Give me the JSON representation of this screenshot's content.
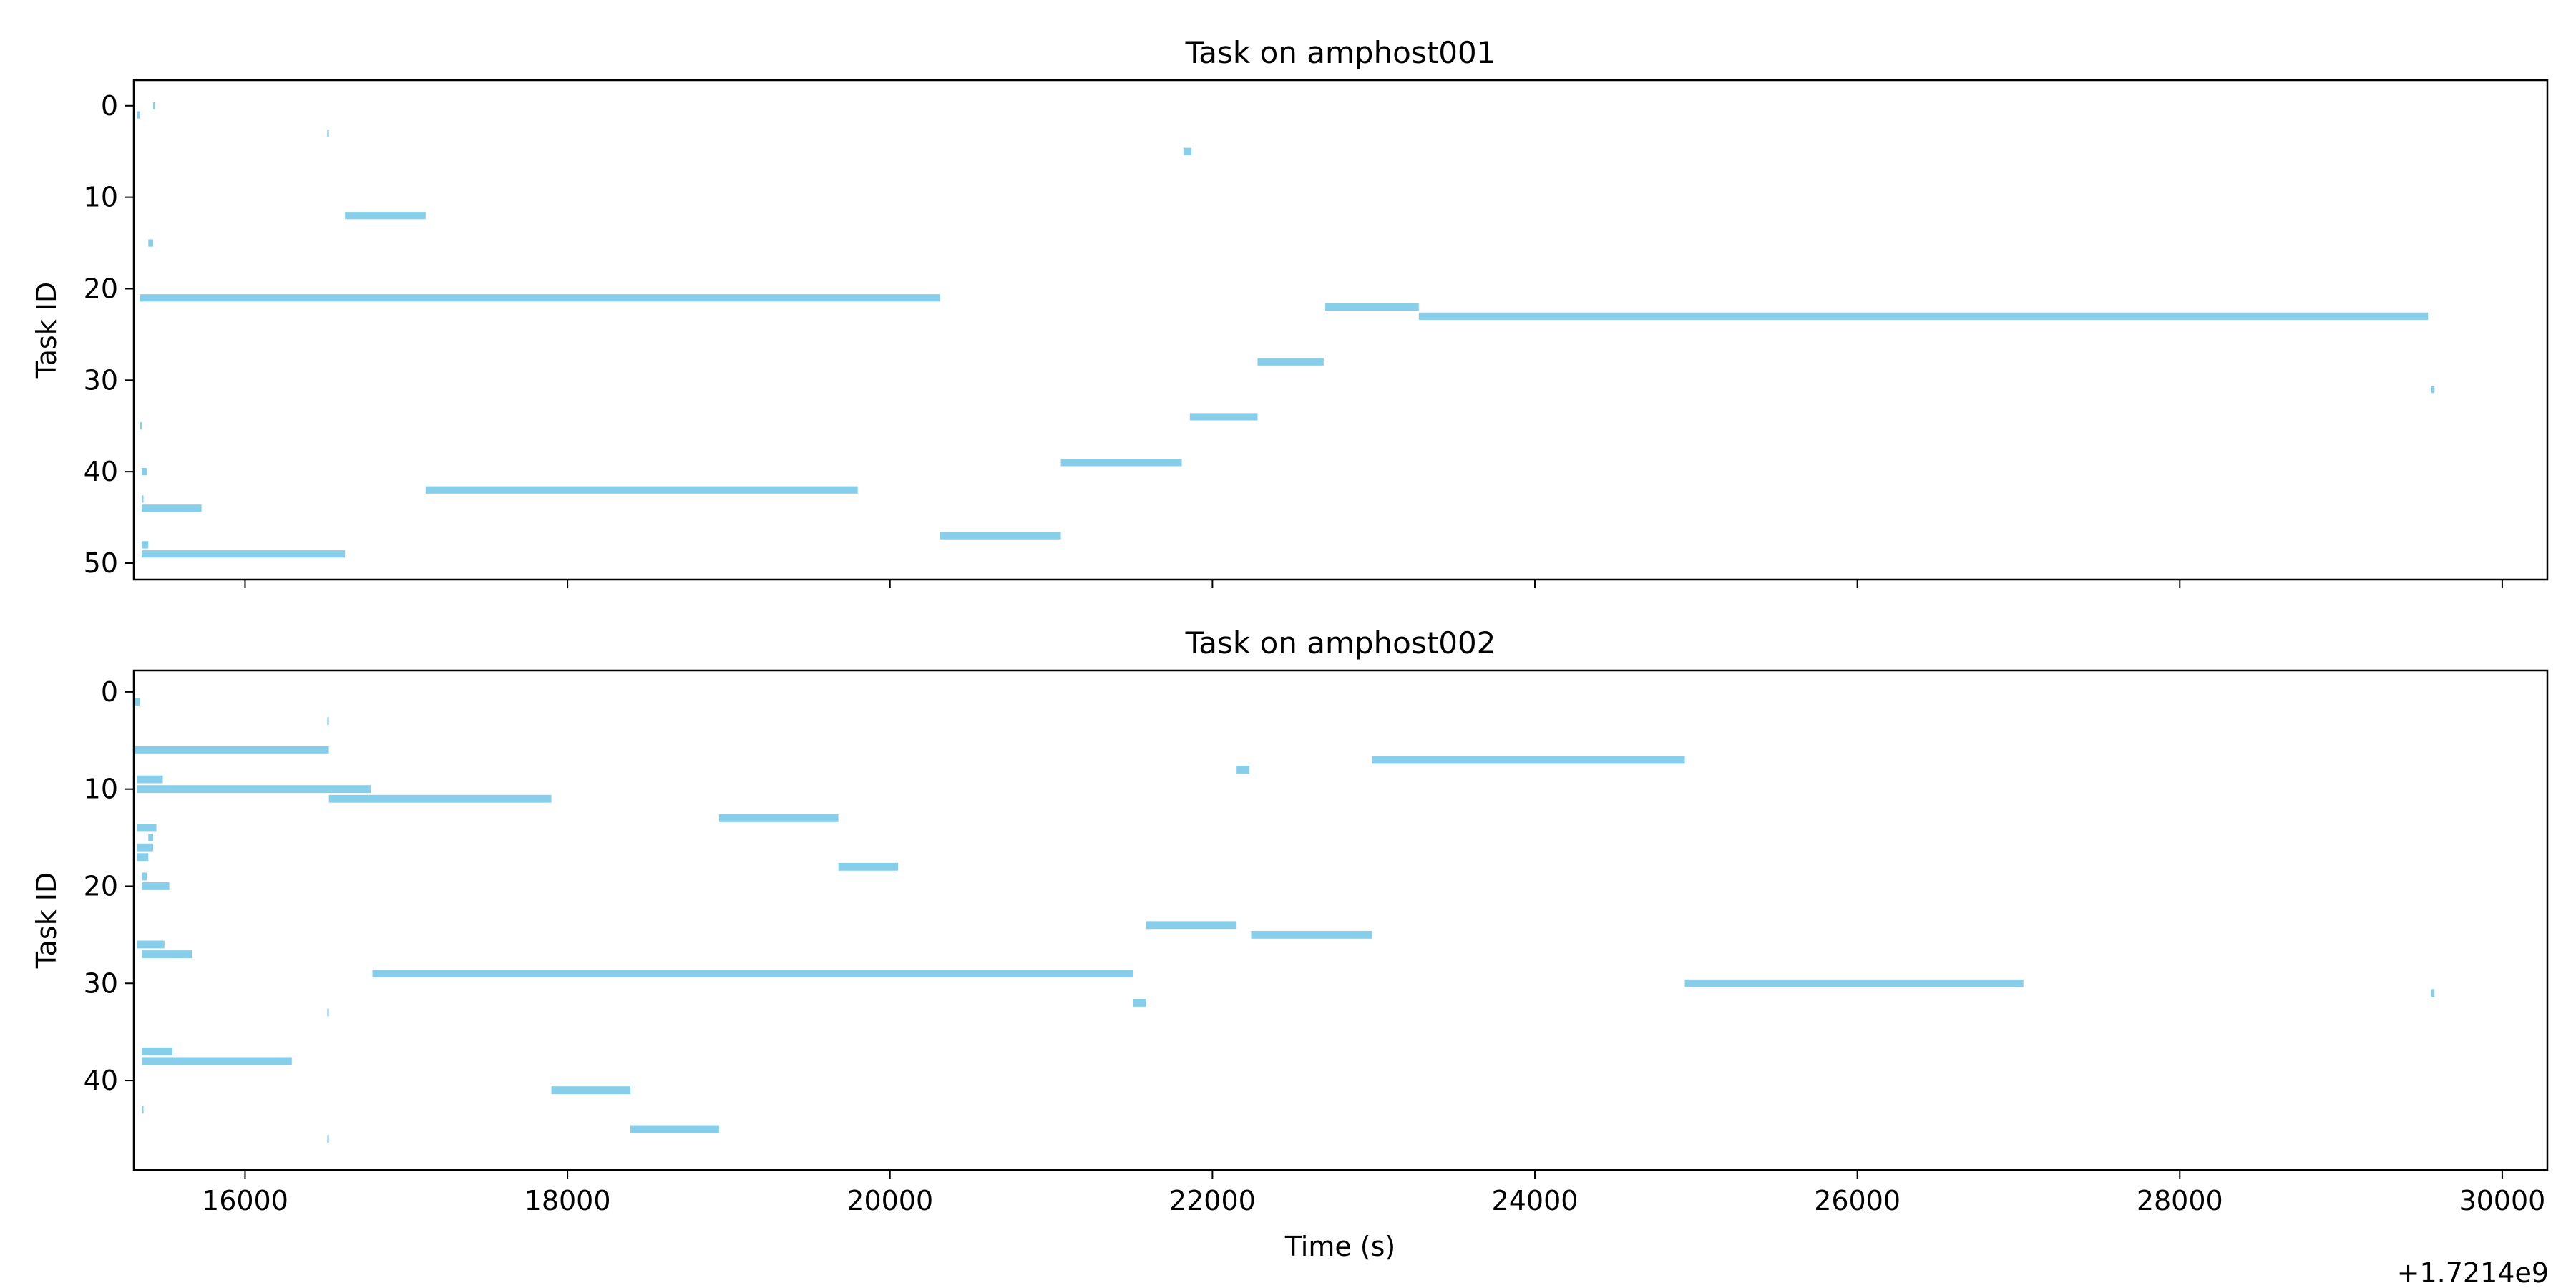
{
  "figure": {
    "xlabel": "Time (s)",
    "offset_text": "+1.7214e9",
    "bar_color": "#87ceeb"
  },
  "chart_data": [
    {
      "type": "bar",
      "subtype": "gantt-horizontal",
      "title": "Task on amphost001",
      "xlabel": "",
      "ylabel": "Task ID",
      "xlim": [
        15310,
        30280
      ],
      "ylim": [
        51.8,
        -2.8
      ],
      "y_inverted": true,
      "x_ticks": [
        16000,
        18000,
        20000,
        22000,
        24000,
        26000,
        28000,
        30000
      ],
      "x_tick_labels_shown": false,
      "y_ticks": [
        0,
        10,
        20,
        30,
        40,
        50
      ],
      "grid": false,
      "series": [
        {
          "values": [
            {
              "task": 0,
              "start": 15430,
              "end": 15440
            },
            {
              "task": 1,
              "start": 15330,
              "end": 15350
            },
            {
              "task": 3,
              "start": 16510,
              "end": 16520
            },
            {
              "task": 5,
              "start": 21820,
              "end": 21870
            },
            {
              "task": 12,
              "start": 16620,
              "end": 17120
            },
            {
              "task": 15,
              "start": 15400,
              "end": 15430
            },
            {
              "task": 21,
              "start": 15350,
              "end": 20310
            },
            {
              "task": 22,
              "start": 22700,
              "end": 23280
            },
            {
              "task": 23,
              "start": 23280,
              "end": 29540
            },
            {
              "task": 28,
              "start": 22280,
              "end": 22690
            },
            {
              "task": 31,
              "start": 29560,
              "end": 29580
            },
            {
              "task": 34,
              "start": 21860,
              "end": 22280
            },
            {
              "task": 35,
              "start": 15350,
              "end": 15360
            },
            {
              "task": 39,
              "start": 21060,
              "end": 21810
            },
            {
              "task": 40,
              "start": 15360,
              "end": 15390
            },
            {
              "task": 42,
              "start": 17120,
              "end": 19800
            },
            {
              "task": 43,
              "start": 15360,
              "end": 15370
            },
            {
              "task": 44,
              "start": 15360,
              "end": 15730
            },
            {
              "task": 47,
              "start": 20310,
              "end": 21060
            },
            {
              "task": 48,
              "start": 15360,
              "end": 15400
            },
            {
              "task": 49,
              "start": 15360,
              "end": 16620
            }
          ]
        }
      ]
    },
    {
      "type": "bar",
      "subtype": "gantt-horizontal",
      "title": "Task on amphost002",
      "xlabel": "Time (s)",
      "ylabel": "Task ID",
      "xlim": [
        15310,
        30280
      ],
      "ylim": [
        49.2,
        -2.2
      ],
      "y_inverted": true,
      "x_ticks": [
        16000,
        18000,
        20000,
        22000,
        24000,
        26000,
        28000,
        30000
      ],
      "x_tick_labels": [
        "16000",
        "18000",
        "20000",
        "22000",
        "24000",
        "26000",
        "28000",
        "30000"
      ],
      "x_offset": "+1.7214e9",
      "y_ticks": [
        0,
        10,
        20,
        30,
        40
      ],
      "grid": false,
      "series": [
        {
          "values": [
            {
              "task": 1,
              "start": 15310,
              "end": 15350
            },
            {
              "task": 3,
              "start": 16510,
              "end": 16520
            },
            {
              "task": 6,
              "start": 15310,
              "end": 16520
            },
            {
              "task": 7,
              "start": 22990,
              "end": 24930
            },
            {
              "task": 8,
              "start": 22150,
              "end": 22230
            },
            {
              "task": 9,
              "start": 15330,
              "end": 15490
            },
            {
              "task": 10,
              "start": 15330,
              "end": 16780
            },
            {
              "task": 11,
              "start": 16520,
              "end": 17900
            },
            {
              "task": 13,
              "start": 18940,
              "end": 19680
            },
            {
              "task": 14,
              "start": 15330,
              "end": 15450
            },
            {
              "task": 15,
              "start": 15400,
              "end": 15430
            },
            {
              "task": 16,
              "start": 15330,
              "end": 15430
            },
            {
              "task": 17,
              "start": 15330,
              "end": 15400
            },
            {
              "task": 18,
              "start": 19680,
              "end": 20050
            },
            {
              "task": 19,
              "start": 15360,
              "end": 15390
            },
            {
              "task": 20,
              "start": 15360,
              "end": 15530
            },
            {
              "task": 24,
              "start": 21590,
              "end": 22150
            },
            {
              "task": 25,
              "start": 22240,
              "end": 22990
            },
            {
              "task": 26,
              "start": 15330,
              "end": 15500
            },
            {
              "task": 27,
              "start": 15360,
              "end": 15670
            },
            {
              "task": 29,
              "start": 16790,
              "end": 21510
            },
            {
              "task": 30,
              "start": 24930,
              "end": 27030
            },
            {
              "task": 31,
              "start": 29560,
              "end": 29580
            },
            {
              "task": 32,
              "start": 21510,
              "end": 21590
            },
            {
              "task": 33,
              "start": 16510,
              "end": 16520
            },
            {
              "task": 37,
              "start": 15360,
              "end": 15550
            },
            {
              "task": 38,
              "start": 15360,
              "end": 16290
            },
            {
              "task": 41,
              "start": 17900,
              "end": 18390
            },
            {
              "task": 43,
              "start": 15360,
              "end": 15370
            },
            {
              "task": 45,
              "start": 18390,
              "end": 18940
            },
            {
              "task": 46,
              "start": 16510,
              "end": 16520
            }
          ]
        }
      ]
    }
  ]
}
